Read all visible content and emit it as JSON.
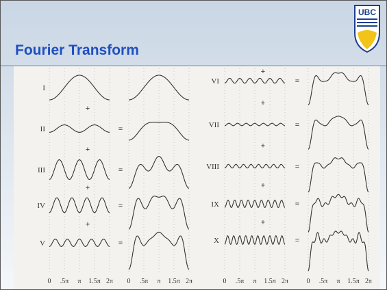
{
  "header": {
    "title": "Fourier Transform",
    "logo": "UBC"
  },
  "figure": {
    "rows_left": [
      "I",
      "II",
      "III",
      "IV",
      "V"
    ],
    "rows_right": [
      "VI",
      "VII",
      "VIII",
      "IX",
      "X"
    ],
    "plus": "+",
    "equals": "=",
    "axis_ticks": [
      "0",
      ".5π",
      "π",
      "1.5π",
      "2π"
    ]
  }
}
